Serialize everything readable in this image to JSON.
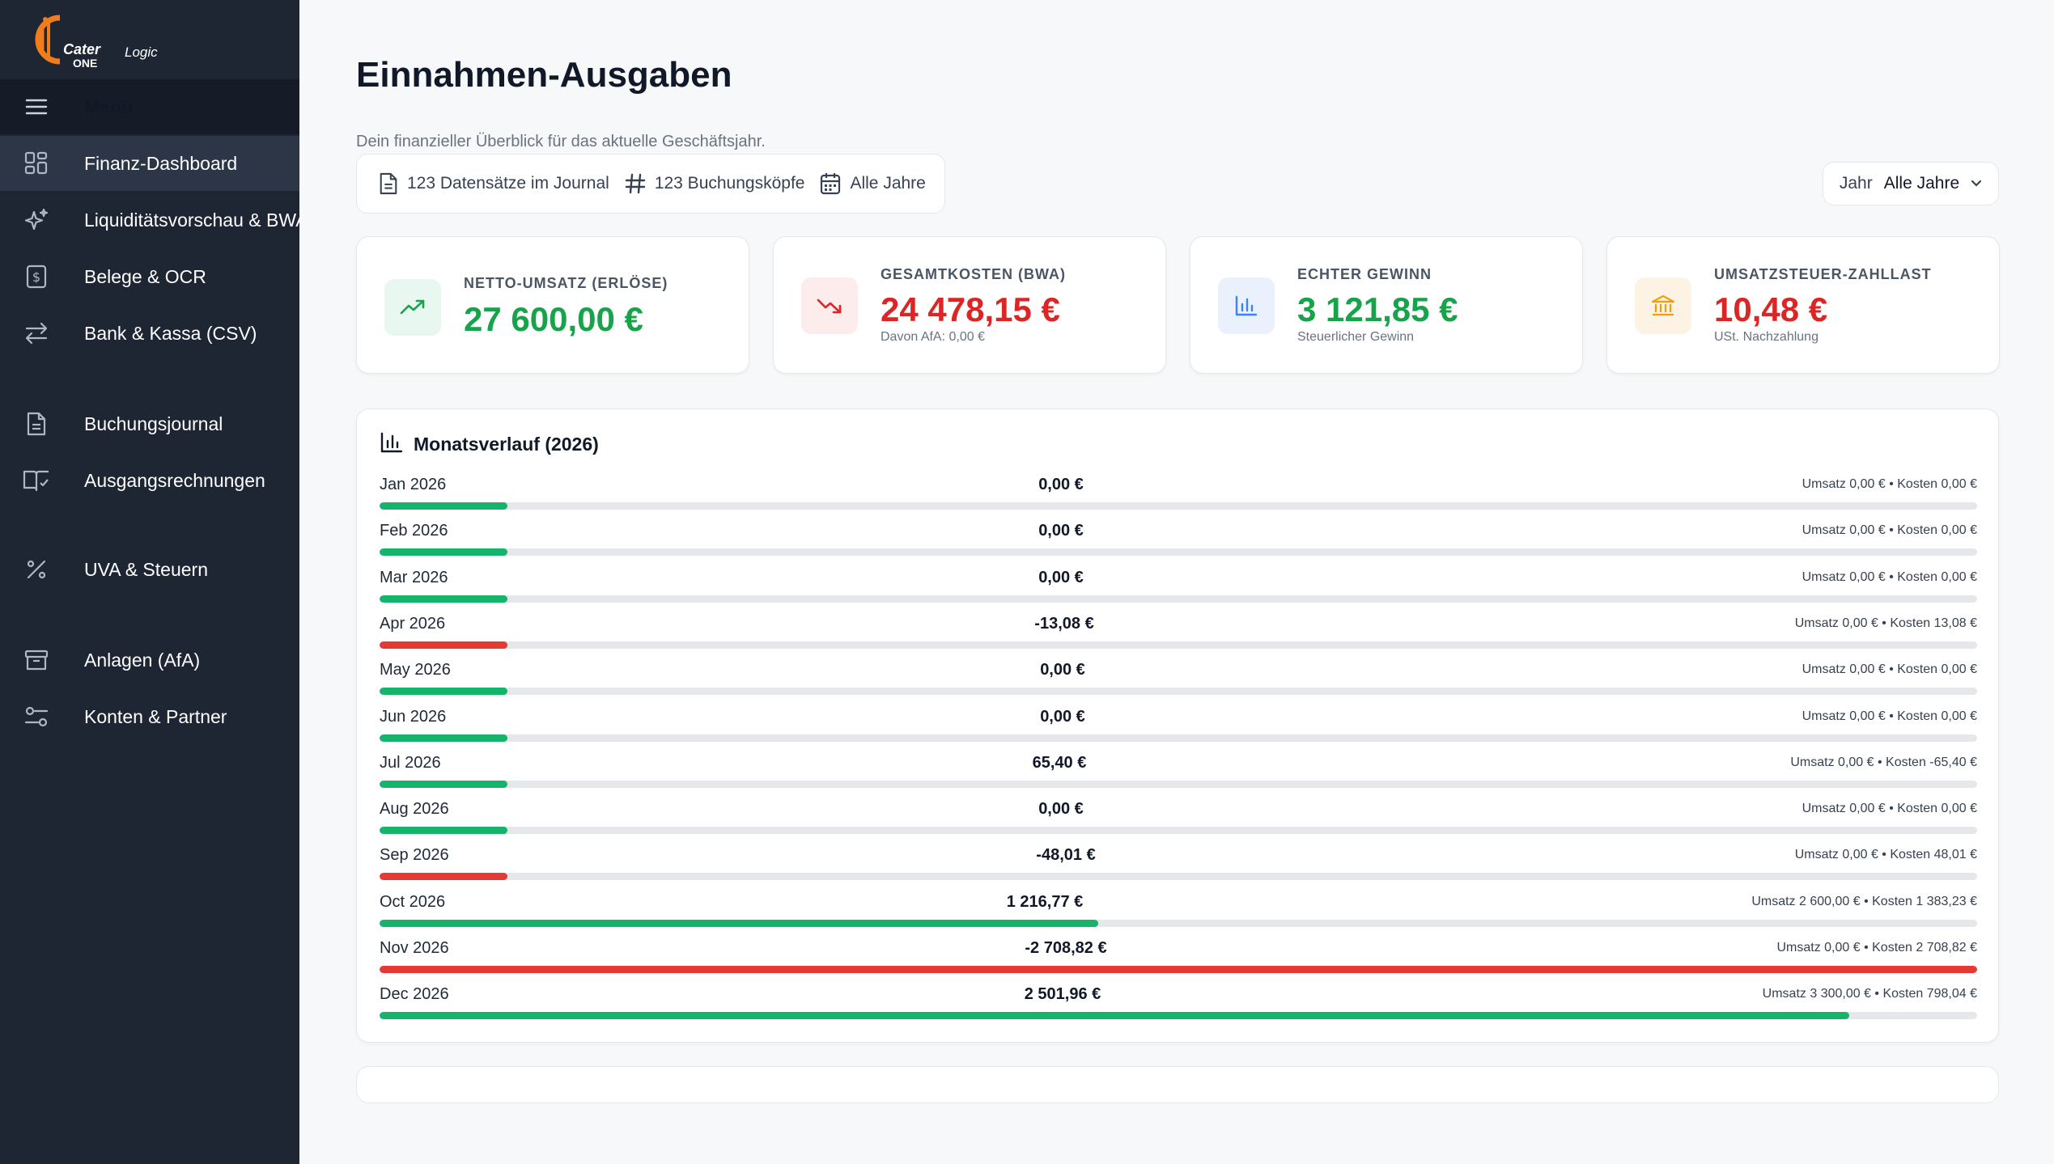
{
  "app": {
    "logo_text_1": "Cater",
    "logo_text_2": "Logic",
    "logo_text_3": "ONE",
    "accent_color": "#f07c1b"
  },
  "sidebar": {
    "menu_label": "Menü",
    "items": [
      {
        "label": "Finanz-Dashboard",
        "icon": "grid-icon",
        "active": true
      },
      {
        "label": "Liquiditätsvorschau & BWA",
        "icon": "sparkle-icon",
        "active": false
      },
      {
        "label": "Belege & OCR",
        "icon": "receipt-icon",
        "active": false
      },
      {
        "label": "Bank & Kassa (CSV)",
        "icon": "arrows-icon",
        "active": false
      },
      {
        "label": "Buchungsjournal",
        "icon": "document-icon",
        "active": false
      },
      {
        "label": "Ausgangsrechnungen",
        "icon": "book-icon",
        "active": false
      },
      {
        "label": "UVA & Steuern",
        "icon": "percent-icon",
        "active": false
      },
      {
        "label": "Anlagen (AfA)",
        "icon": "archive-icon",
        "active": false
      },
      {
        "label": "Konten & Partner",
        "icon": "sliders-icon",
        "active": false
      }
    ]
  },
  "header": {
    "title": "Einnahmen-Ausgaben",
    "subtitle": "Dein finanzieller Überblick für das aktuelle Geschäftsjahr.",
    "meta": {
      "records": "123 Datensätze im Journal",
      "heads": "123 Buchungsköpfe",
      "years": "Alle Jahre"
    },
    "year_select": {
      "label": "Jahr",
      "value": "Alle Jahre"
    }
  },
  "kpis": [
    {
      "label": "NETTO-UMSATZ (ERLÖSE)",
      "value": "27 600,00 €",
      "sub": "",
      "color": "#16a34a",
      "icon": "trend-up-icon",
      "icon_bg": "#e8f7ef"
    },
    {
      "label": "GESAMTKOSTEN (BWA)",
      "value": "24 478,15 €",
      "sub": "Davon AfA: 0,00 €",
      "color": "#dc2626",
      "icon": "trend-down-icon",
      "icon_bg": "#fdecec"
    },
    {
      "label": "ECHTER GEWINN",
      "value": "3 121,85 €",
      "sub": "Steuerlicher Gewinn",
      "color": "#16a34a",
      "icon": "bar-chart-icon",
      "icon_bg": "#eaf1fd"
    },
    {
      "label": "UMSATZSTEUER-ZAHLLAST",
      "value": "10,48 €",
      "sub": "USt. Nachzahlung",
      "color": "#dc2626",
      "icon": "bank-icon",
      "icon_bg": "#fdf3e4"
    }
  ],
  "monthly": {
    "title": "Monatsverlauf (2026)",
    "colors": {
      "positive": "#16b36b",
      "negative": "#e53935"
    },
    "rows": [
      {
        "month": "Jan 2026",
        "value": "0,00 €",
        "detail": "Umsatz 0,00 € • Kosten 0,00 €",
        "fill": 0.08,
        "negative": false
      },
      {
        "month": "Feb 2026",
        "value": "0,00 €",
        "detail": "Umsatz 0,00 € • Kosten 0,00 €",
        "fill": 0.08,
        "negative": false
      },
      {
        "month": "Mar 2026",
        "value": "0,00 €",
        "detail": "Umsatz 0,00 € • Kosten 0,00 €",
        "fill": 0.08,
        "negative": false
      },
      {
        "month": "Apr 2026",
        "value": "-13,08 €",
        "detail": "Umsatz 0,00 € • Kosten 13,08 €",
        "fill": 0.08,
        "negative": true
      },
      {
        "month": "May 2026",
        "value": "0,00 €",
        "detail": "Umsatz 0,00 € • Kosten 0,00 €",
        "fill": 0.08,
        "negative": false
      },
      {
        "month": "Jun 2026",
        "value": "0,00 €",
        "detail": "Umsatz 0,00 € • Kosten 0,00 €",
        "fill": 0.08,
        "negative": false
      },
      {
        "month": "Jul 2026",
        "value": "65,40 €",
        "detail": "Umsatz 0,00 € • Kosten -65,40 €",
        "fill": 0.08,
        "negative": false
      },
      {
        "month": "Aug 2026",
        "value": "0,00 €",
        "detail": "Umsatz 0,00 € • Kosten 0,00 €",
        "fill": 0.08,
        "negative": false
      },
      {
        "month": "Sep 2026",
        "value": "-48,01 €",
        "detail": "Umsatz 0,00 € • Kosten 48,01 €",
        "fill": 0.08,
        "negative": true
      },
      {
        "month": "Oct 2026",
        "value": "1 216,77 €",
        "detail": "Umsatz 2 600,00 € • Kosten 1 383,23 €",
        "fill": 0.45,
        "negative": false
      },
      {
        "month": "Nov 2026",
        "value": "-2 708,82 €",
        "detail": "Umsatz 0,00 € • Kosten 2 708,82 €",
        "fill": 1.0,
        "negative": true
      },
      {
        "month": "Dec 2026",
        "value": "2 501,96 €",
        "detail": "Umsatz 3 300,00 € • Kosten 798,04 €",
        "fill": 0.92,
        "negative": false
      }
    ]
  }
}
